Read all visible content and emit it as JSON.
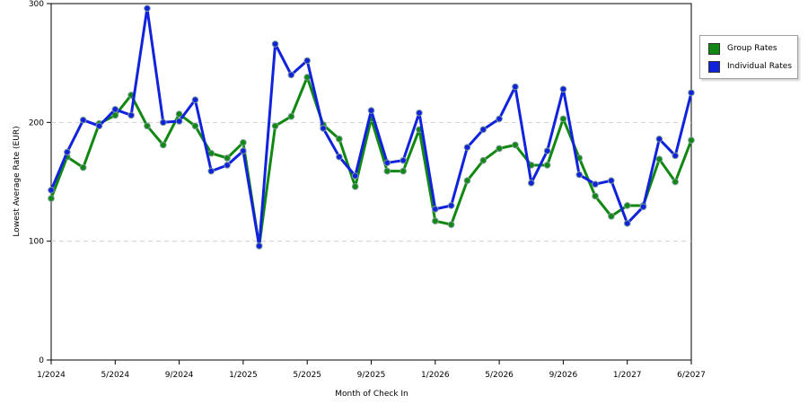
{
  "chart_data": {
    "type": "line",
    "xlabel": "Month of Check In",
    "ylabel": "Lowest Average Rate (EUR)",
    "ylim": [
      0,
      300
    ],
    "y_ticks": [
      0,
      100,
      200,
      300
    ],
    "x_tick_labels": [
      "1/2024",
      "5/2024",
      "9/2024",
      "1/2025",
      "5/2025",
      "9/2025",
      "1/2026",
      "5/2026",
      "9/2026",
      "1/2027",
      "6/2027"
    ],
    "x_tick_index": [
      0,
      4,
      8,
      12,
      16,
      20,
      24,
      28,
      32,
      36,
      40
    ],
    "grid": "horizontal dashed",
    "legend_position": "right",
    "categories": [
      "1/2024",
      "2/2024",
      "3/2024",
      "4/2024",
      "5/2024",
      "6/2024",
      "7/2024",
      "8/2024",
      "9/2024",
      "10/2024",
      "11/2024",
      "12/2024",
      "1/2025",
      "2/2025",
      "3/2025",
      "4/2025",
      "5/2025",
      "6/2025",
      "7/2025",
      "8/2025",
      "9/2025",
      "10/2025",
      "11/2025",
      "12/2025",
      "1/2026",
      "2/2026",
      "3/2026",
      "4/2026",
      "5/2026",
      "6/2026",
      "7/2026",
      "8/2026",
      "9/2026",
      "10/2026",
      "11/2026",
      "12/2026",
      "1/2027",
      "2/2027",
      "3/2027",
      "4/2027",
      "6/2027"
    ],
    "series": [
      {
        "name": "Group Rates",
        "color": "#118811",
        "values": [
          136,
          171,
          162,
          199,
          206,
          223,
          197,
          181,
          207,
          197,
          174,
          170,
          183,
          96,
          197,
          205,
          238,
          198,
          186,
          146,
          203,
          159,
          159,
          194,
          117,
          114,
          151,
          168,
          178,
          181,
          164,
          164,
          203,
          170,
          138,
          121,
          130,
          130,
          169,
          150,
          185
        ]
      },
      {
        "name": "Individual Rates",
        "color": "#1122dd",
        "values": [
          143,
          175,
          202,
          197,
          211,
          206,
          296,
          200,
          201,
          219,
          159,
          164,
          176,
          96,
          266,
          240,
          252,
          195,
          171,
          155,
          210,
          166,
          168,
          208,
          127,
          130,
          179,
          194,
          203,
          230,
          149,
          176,
          228,
          156,
          148,
          151,
          115,
          129,
          186,
          172,
          225
        ]
      }
    ]
  }
}
